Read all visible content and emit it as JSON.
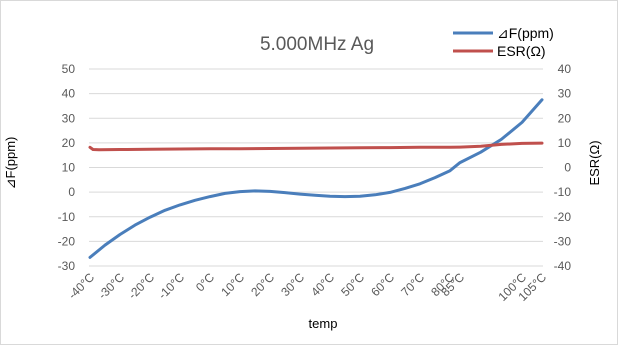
{
  "chart_data": {
    "type": "line",
    "title": "5.000MHz   Ag",
    "xlabel": "temp",
    "ylabel_left": "⊿F(ppm)",
    "ylabel_right": "ESR(Ω)",
    "x_tick_labels": [
      "-40°C",
      "-30°C",
      "-20°C",
      "-10°C",
      "0°C",
      "10°C",
      "20°C",
      "30°C",
      "40°C",
      "50°C",
      "60°C",
      "70°C",
      "80°C",
      "85°C",
      "100°C",
      "105°C"
    ],
    "x_tick_values": [
      -40,
      -30,
      -20,
      -10,
      0,
      10,
      20,
      30,
      40,
      50,
      60,
      70,
      80,
      85,
      100,
      105
    ],
    "y_left_ticks": [
      "50",
      "40",
      "30",
      "20",
      "10",
      "0",
      "-10",
      "-20",
      "-30"
    ],
    "y_left_lim": [
      -30,
      50
    ],
    "y_right_ticks": [
      "40",
      "30",
      "20",
      "10",
      "0",
      "-10",
      "-20",
      "-30",
      "-40"
    ],
    "y_right_lim": [
      -40,
      40
    ],
    "grid": true,
    "legend_position": "top-right",
    "series": [
      {
        "name": "⊿F(ppm)",
        "axis": "left",
        "color": "#4a7ebb",
        "x": [
          -40,
          -35,
          -30,
          -25,
          -20,
          -15,
          -10,
          -5,
          0,
          5,
          10,
          15,
          20,
          25,
          30,
          35,
          40,
          45,
          50,
          55,
          60,
          65,
          70,
          75,
          80,
          85,
          90,
          95,
          100,
          105
        ],
        "y": [
          -26.5,
          -21.5,
          -17.2,
          -13.4,
          -10.2,
          -7.4,
          -5.2,
          -3.3,
          -1.8,
          -0.5,
          0.2,
          0.5,
          0.3,
          -0.2,
          -0.8,
          -1.3,
          -1.7,
          -1.8,
          -1.7,
          -1.1,
          -0.1,
          1.5,
          3.4,
          5.9,
          8.7,
          12.0,
          16.2,
          21.4,
          28.3,
          37.5
        ]
      },
      {
        "name": "ESR(Ω)",
        "axis": "right",
        "color": "#c0504d",
        "x": [
          -40,
          -39,
          -37,
          -30,
          -20,
          -10,
          0,
          10,
          20,
          30,
          40,
          50,
          60,
          70,
          80,
          85,
          90,
          95,
          100,
          105
        ],
        "y": [
          8.2,
          7.3,
          7.2,
          7.3,
          7.4,
          7.5,
          7.6,
          7.6,
          7.7,
          7.8,
          7.9,
          8.0,
          8.1,
          8.2,
          8.2,
          8.3,
          8.6,
          9.4,
          9.8,
          9.9
        ]
      }
    ]
  }
}
